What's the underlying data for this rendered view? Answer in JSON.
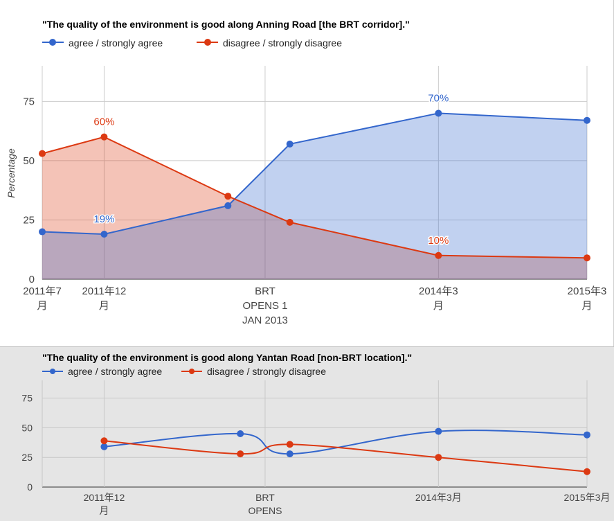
{
  "chart_data": [
    {
      "type": "area",
      "title": "\"The quality of the environment is good along Anning Road [the BRT corridor].\"",
      "xlabel": "",
      "ylabel": "Percentage",
      "ylim": [
        0,
        90
      ],
      "yticks": [
        "0",
        "25",
        "50",
        "75"
      ],
      "ytick_values": [
        0,
        25,
        50,
        75
      ],
      "grid": true,
      "legend": "top-left",
      "x_ticks": [
        {
          "x": 0,
          "lines": [
            "2011年7",
            "月"
          ]
        },
        {
          "x": 5,
          "lines": [
            "2011年12",
            "月"
          ]
        },
        {
          "x": 18,
          "lines": [
            "BRT",
            "OPENS 1",
            "JAN 2013"
          ]
        },
        {
          "x": 32,
          "lines": [
            "2014年3",
            "月"
          ]
        },
        {
          "x": 44,
          "lines": [
            "2015年3",
            "月"
          ]
        }
      ],
      "series": [
        {
          "name": "agree / strongly agree",
          "color": "#3366cc",
          "fill": "#c3d0ee",
          "points": [
            [
              0,
              20
            ],
            [
              5,
              19
            ],
            [
              15,
              31
            ],
            [
              20,
              57
            ],
            [
              32,
              70
            ],
            [
              44,
              67
            ]
          ]
        },
        {
          "name": "disagree / strongly disagree",
          "color": "#dc3912",
          "fill": "#f5c6b8",
          "points": [
            [
              0,
              53
            ],
            [
              5,
              60
            ],
            [
              15,
              35
            ],
            [
              20,
              24
            ],
            [
              32,
              10
            ],
            [
              44,
              9
            ]
          ]
        }
      ],
      "data_labels": [
        {
          "series": 0,
          "x": 5,
          "y": 19,
          "text": "19%"
        },
        {
          "series": 0,
          "x": 32,
          "y": 70,
          "text": "70%"
        },
        {
          "series": 1,
          "x": 5,
          "y": 60,
          "text": "60%"
        },
        {
          "series": 1,
          "x": 32,
          "y": 10,
          "text": "10%"
        }
      ]
    },
    {
      "type": "line",
      "title": "\"The quality of the environment is good along Yantan Road [non-BRT location].\"",
      "xlabel": "",
      "ylabel": "",
      "ylim": [
        0,
        90
      ],
      "yticks": [
        "0",
        "25",
        "50",
        "75"
      ],
      "ytick_values": [
        0,
        25,
        50,
        75
      ],
      "grid": true,
      "legend": "top-left",
      "x_ticks": [
        {
          "x": 5,
          "lines": [
            "2011年12",
            "月"
          ]
        },
        {
          "x": 18,
          "lines": [
            "BRT",
            "OPENS"
          ]
        },
        {
          "x": 32,
          "lines": [
            "2014年3月"
          ]
        },
        {
          "x": 44,
          "lines": [
            "2015年3月"
          ]
        }
      ],
      "series": [
        {
          "name": "agree / strongly agree",
          "color": "#3366cc",
          "points": [
            [
              5,
              34
            ],
            [
              16,
              45
            ],
            [
              20,
              28
            ],
            [
              32,
              47
            ],
            [
              44,
              44
            ]
          ]
        },
        {
          "name": "disagree / strongly disagree",
          "color": "#dc3912",
          "points": [
            [
              5,
              39
            ],
            [
              16,
              28
            ],
            [
              20,
              36
            ],
            [
              32,
              25
            ],
            [
              44,
              13
            ]
          ]
        }
      ]
    }
  ]
}
